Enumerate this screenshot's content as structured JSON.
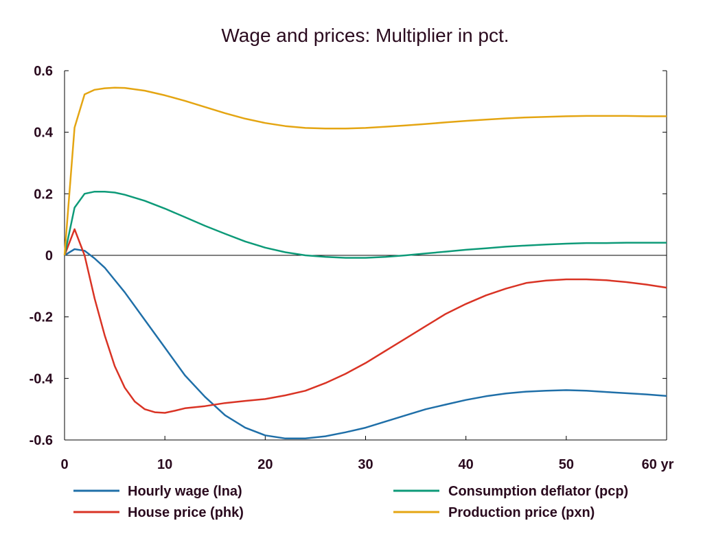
{
  "chart_data": {
    "type": "line",
    "title": "Wage and prices: Multiplier in pct.",
    "xlim": [
      0,
      60
    ],
    "ylim": [
      -0.6,
      0.6
    ],
    "x_ticks": [
      0,
      10,
      20,
      30,
      40,
      50,
      60
    ],
    "x_tick_labels": [
      "0",
      "10",
      "20",
      "30",
      "40",
      "50",
      "60 yr"
    ],
    "y_ticks": [
      0.6,
      0.4,
      0.2,
      0,
      -0.2,
      -0.4,
      -0.6
    ],
    "y_tick_labels": [
      "0.6",
      "0.4",
      "0.2",
      "0",
      "-0.2",
      "-0.4",
      "-0.6"
    ],
    "zero_line": true,
    "grid": false,
    "legend_position": "bottom",
    "series": [
      {
        "name": "Hourly wage (lna)",
        "color": "#1f6fa8",
        "x": [
          0,
          1,
          2,
          3,
          4,
          5,
          6,
          8,
          10,
          12,
          14,
          16,
          18,
          20,
          22,
          24,
          26,
          28,
          30,
          32,
          34,
          36,
          38,
          40,
          42,
          44,
          46,
          48,
          50,
          52,
          54,
          56,
          58,
          60
        ],
        "y": [
          0,
          0.02,
          0.015,
          -0.01,
          -0.04,
          -0.08,
          -0.12,
          -0.21,
          -0.3,
          -0.39,
          -0.46,
          -0.52,
          -0.56,
          -0.585,
          -0.595,
          -0.595,
          -0.588,
          -0.575,
          -0.56,
          -0.54,
          -0.52,
          -0.5,
          -0.485,
          -0.47,
          -0.458,
          -0.449,
          -0.443,
          -0.44,
          -0.438,
          -0.44,
          -0.444,
          -0.448,
          -0.452,
          -0.457
        ]
      },
      {
        "name": "House price (phk)",
        "color": "#d93324",
        "x": [
          0,
          1,
          2,
          3,
          4,
          5,
          6,
          7,
          8,
          9,
          10,
          11,
          12,
          14,
          16,
          18,
          20,
          22,
          24,
          26,
          28,
          30,
          32,
          34,
          36,
          38,
          40,
          42,
          44,
          46,
          48,
          50,
          52,
          54,
          56,
          58,
          60
        ],
        "y": [
          0,
          0.085,
          0.0,
          -0.14,
          -0.26,
          -0.36,
          -0.43,
          -0.475,
          -0.5,
          -0.51,
          -0.512,
          -0.505,
          -0.497,
          -0.49,
          -0.48,
          -0.473,
          -0.467,
          -0.455,
          -0.44,
          -0.415,
          -0.385,
          -0.35,
          -0.31,
          -0.27,
          -0.23,
          -0.19,
          -0.158,
          -0.13,
          -0.108,
          -0.09,
          -0.082,
          -0.078,
          -0.078,
          -0.081,
          -0.087,
          -0.095,
          -0.105
        ]
      },
      {
        "name": "Consumption deflator (pcp)",
        "color": "#0d9a78",
        "x": [
          0,
          1,
          2,
          3,
          4,
          5,
          6,
          8,
          10,
          12,
          14,
          16,
          18,
          20,
          22,
          24,
          26,
          28,
          30,
          32,
          34,
          36,
          38,
          40,
          42,
          44,
          46,
          48,
          50,
          52,
          54,
          56,
          58,
          60
        ],
        "y": [
          0,
          0.155,
          0.2,
          0.207,
          0.207,
          0.204,
          0.197,
          0.177,
          0.152,
          0.124,
          0.096,
          0.07,
          0.045,
          0.025,
          0.01,
          0.0,
          -0.005,
          -0.008,
          -0.008,
          -0.005,
          0.0,
          0.006,
          0.012,
          0.018,
          0.023,
          0.028,
          0.032,
          0.035,
          0.038,
          0.04,
          0.04,
          0.041,
          0.041,
          0.041
        ]
      },
      {
        "name": "Production price (pxn)",
        "color": "#e4a512",
        "x": [
          0,
          1,
          2,
          3,
          4,
          5,
          6,
          8,
          10,
          12,
          14,
          16,
          18,
          20,
          22,
          24,
          26,
          28,
          30,
          32,
          34,
          36,
          38,
          40,
          42,
          44,
          46,
          48,
          50,
          52,
          54,
          56,
          58,
          60
        ],
        "y": [
          0,
          0.415,
          0.523,
          0.538,
          0.543,
          0.545,
          0.544,
          0.535,
          0.52,
          0.502,
          0.482,
          0.462,
          0.444,
          0.43,
          0.42,
          0.414,
          0.412,
          0.412,
          0.414,
          0.418,
          0.422,
          0.427,
          0.432,
          0.437,
          0.441,
          0.445,
          0.448,
          0.45,
          0.452,
          0.453,
          0.453,
          0.453,
          0.452,
          0.452
        ]
      }
    ]
  }
}
